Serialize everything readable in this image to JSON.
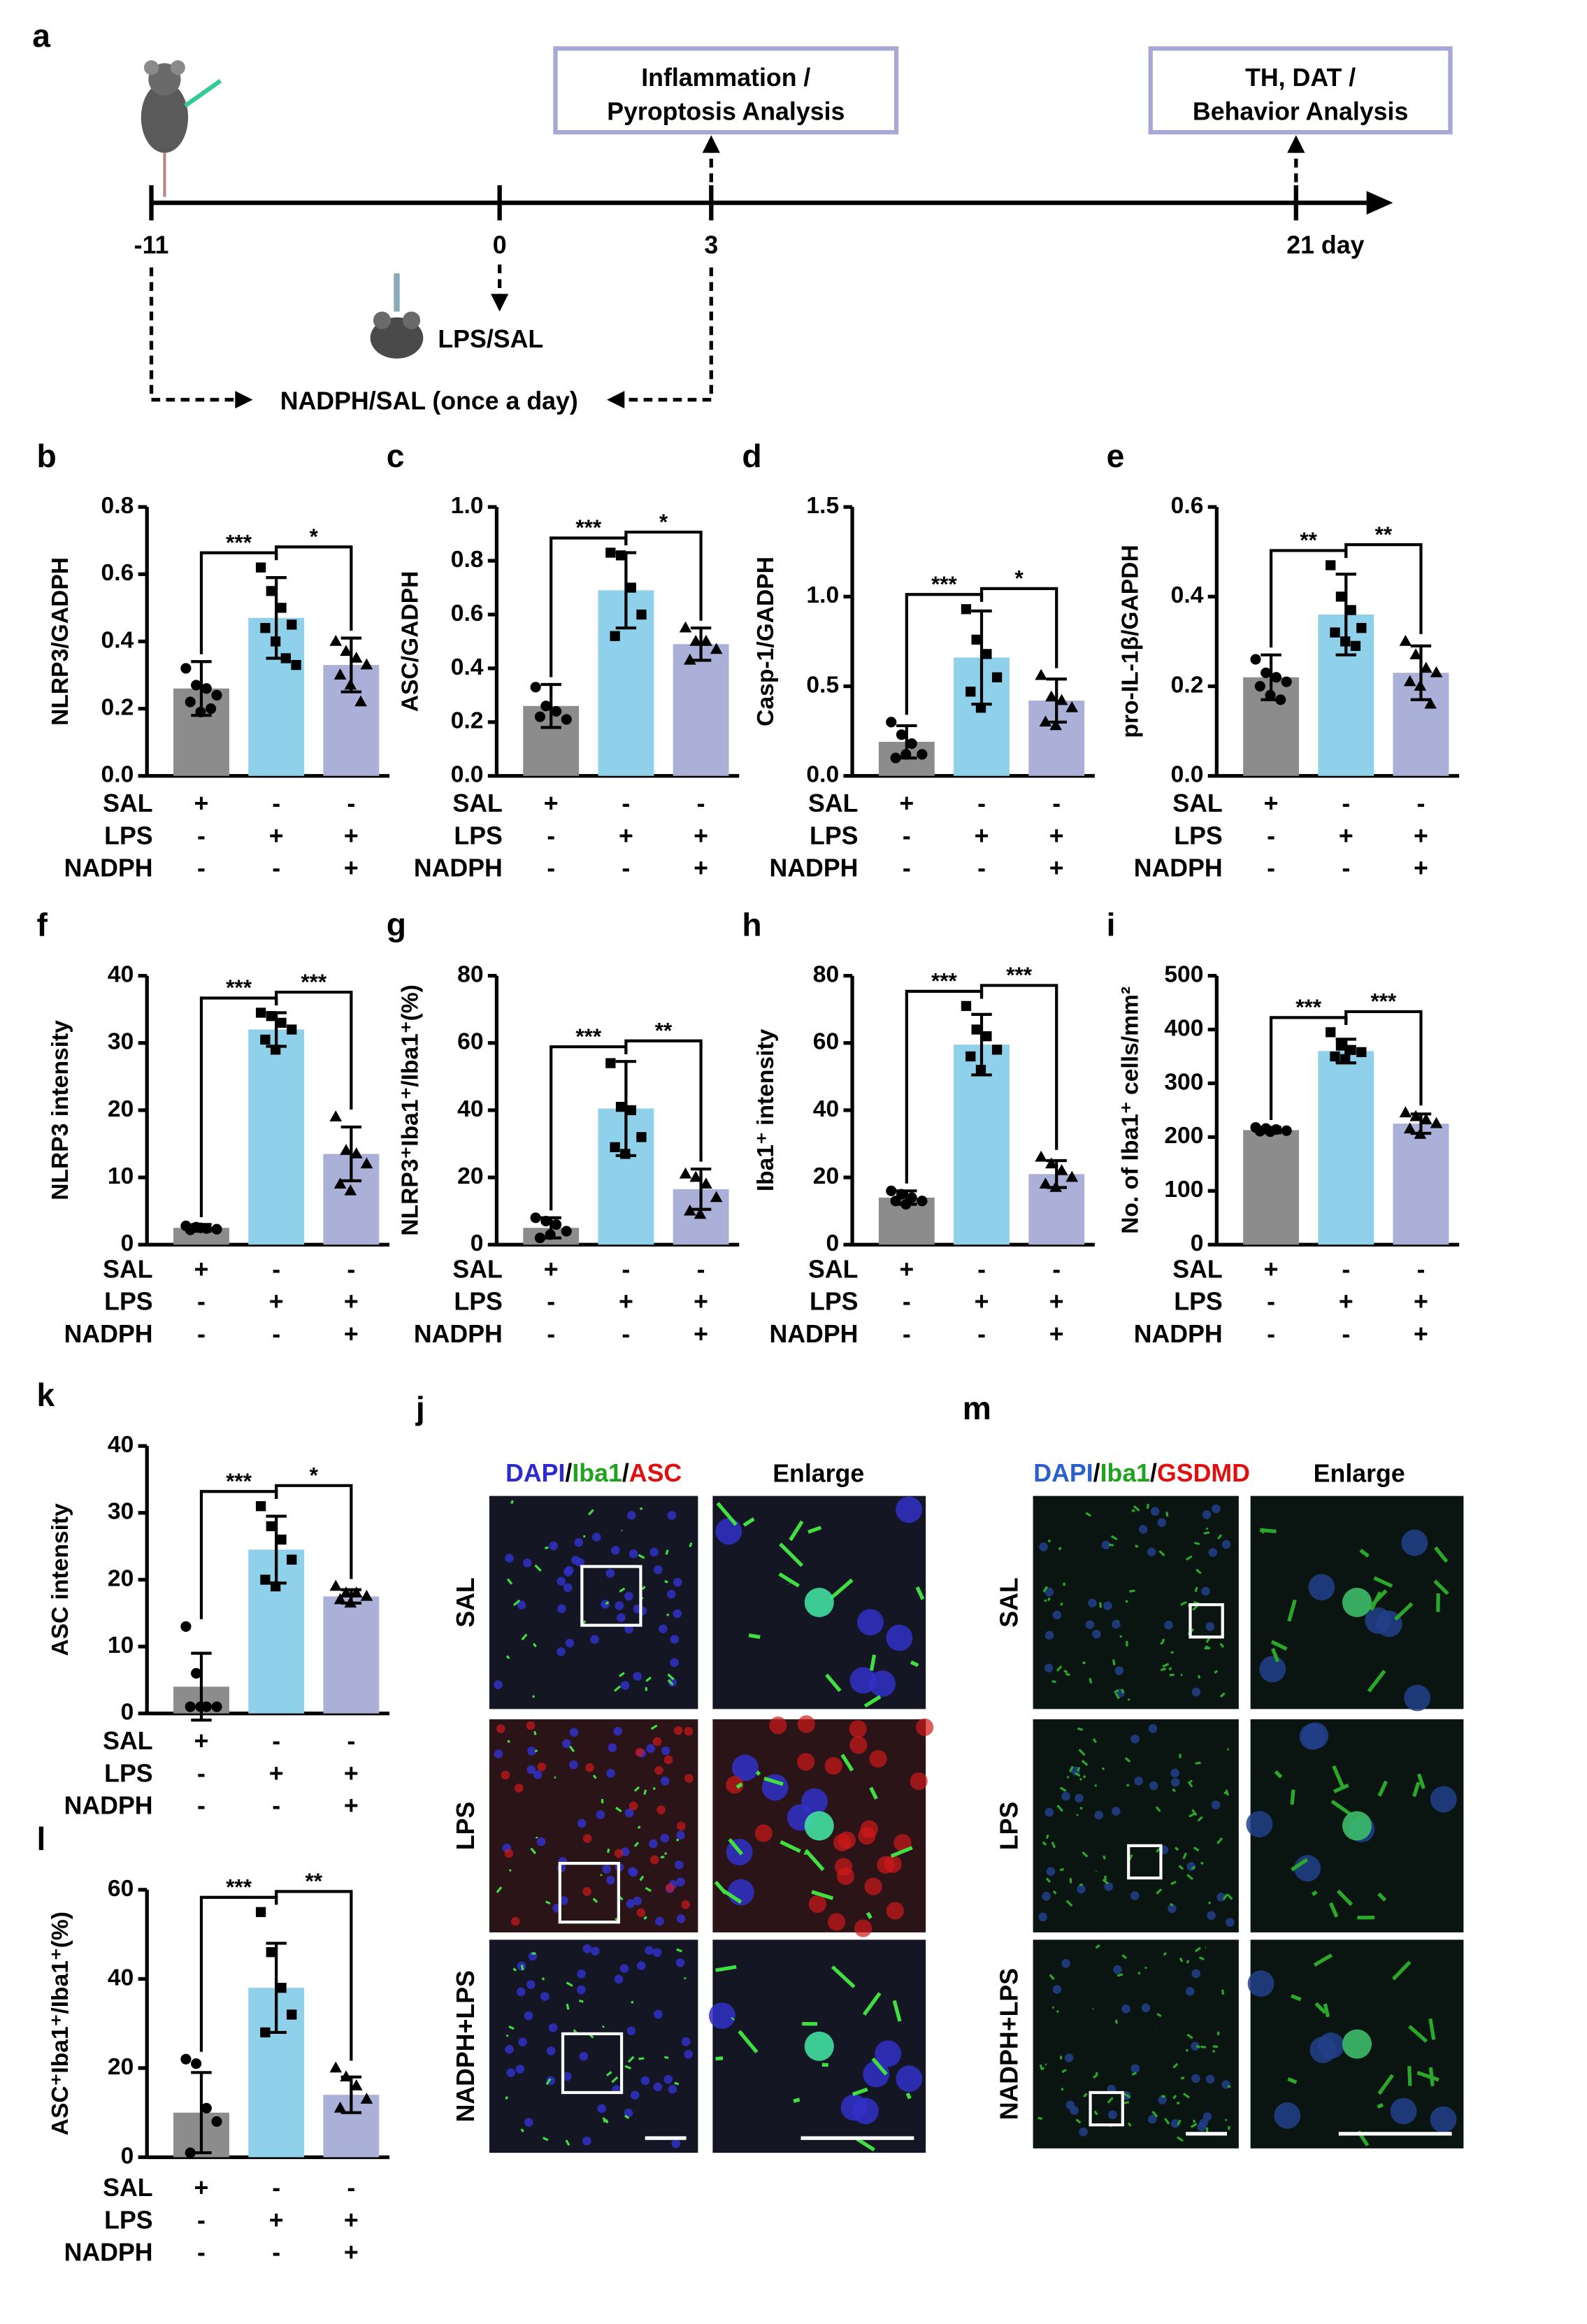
{
  "timeline": {
    "label": "a",
    "ticks": [
      "-11",
      "0",
      "3",
      "21 day"
    ],
    "boxes": [
      [
        "Inflammation /",
        "Pyroptosis Analysis"
      ],
      [
        "TH, DAT /",
        "Behavior Analysis"
      ]
    ],
    "treatment": "LPS/SAL",
    "schedule": "NADPH/SAL (once a day)"
  },
  "chart_data": [
    {
      "type": "bar",
      "label": "b",
      "ylabel": "NLRP3/GADPH",
      "ylim": [
        0,
        0.8
      ],
      "yticks": [
        {
          "value": 0,
          "label": "0.0"
        },
        0.2,
        0.4,
        0.6,
        0.8
      ],
      "values": [
        0.26,
        0.47,
        0.33
      ],
      "errors": [
        0.08,
        0.12,
        0.08
      ],
      "colors": [
        "#8c8c8c",
        "#8fd0ea",
        "#aab0d8"
      ],
      "points": [
        [
          0.32,
          0.27,
          0.26,
          0.24,
          0.22,
          0.19,
          0.2
        ],
        [
          0.62,
          0.55,
          0.5,
          0.45,
          0.44,
          0.4,
          0.35,
          0.33
        ],
        [
          0.4,
          0.37,
          0.35,
          0.33,
          0.3,
          0.27,
          0.22
        ]
      ],
      "significance": [
        "***",
        "*"
      ],
      "conditions": [
        {
          "name": "SAL",
          "signs": [
            "+",
            "-",
            "-"
          ]
        },
        {
          "name": "LPS",
          "signs": [
            "-",
            "+",
            "+"
          ]
        },
        {
          "name": "NADPH",
          "signs": [
            "-",
            "-",
            "+"
          ]
        }
      ]
    },
    {
      "type": "bar",
      "label": "c",
      "ylabel": "ASC/GADPH",
      "ylim": [
        0,
        1.0
      ],
      "yticks": [
        {
          "value": 0,
          "label": "0.0"
        },
        0.2,
        0.4,
        0.6,
        0.8,
        {
          "value": 1,
          "label": "1.0"
        }
      ],
      "values": [
        0.26,
        0.69,
        0.49
      ],
      "errors": [
        0.08,
        0.14,
        0.06
      ],
      "colors": [
        "#8c8c8c",
        "#8fd0ea",
        "#aab0d8"
      ],
      "points": [
        [
          0.33,
          0.26,
          0.24,
          0.21,
          0.22
        ],
        [
          0.83,
          0.82,
          0.7,
          0.6,
          0.52
        ],
        [
          0.55,
          0.5,
          0.5,
          0.47,
          0.43
        ]
      ],
      "significance": [
        "***",
        "*"
      ],
      "conditions": [
        {
          "name": "SAL",
          "signs": [
            "+",
            "-",
            "-"
          ]
        },
        {
          "name": "LPS",
          "signs": [
            "-",
            "+",
            "+"
          ]
        },
        {
          "name": "NADPH",
          "signs": [
            "-",
            "-",
            "+"
          ]
        }
      ]
    },
    {
      "type": "bar",
      "label": "d",
      "ylabel": "Casp-1/GADPH",
      "ylim": [
        0,
        1.5
      ],
      "yticks": [
        {
          "value": 0,
          "label": "0.0"
        },
        0.5,
        {
          "value": 1,
          "label": "1.0"
        },
        1.5
      ],
      "values": [
        0.19,
        0.66,
        0.42
      ],
      "errors": [
        0.09,
        0.26,
        0.12
      ],
      "colors": [
        "#8c8c8c",
        "#8fd0ea",
        "#aab0d8"
      ],
      "points": [
        [
          0.3,
          0.23,
          0.18,
          0.12,
          0.1,
          0.12
        ],
        [
          0.93,
          0.76,
          0.68,
          0.55,
          0.47,
          0.38
        ],
        [
          0.56,
          0.44,
          0.42,
          0.38,
          0.3,
          0.28
        ]
      ],
      "significance": [
        "***",
        "*"
      ],
      "conditions": [
        {
          "name": "SAL",
          "signs": [
            "+",
            "-",
            "-"
          ]
        },
        {
          "name": "LPS",
          "signs": [
            "-",
            "+",
            "+"
          ]
        },
        {
          "name": "NADPH",
          "signs": [
            "-",
            "-",
            "+"
          ]
        }
      ]
    },
    {
      "type": "bar",
      "label": "e",
      "ylabel": "pro-IL-1β/GAPDH",
      "ylim": [
        0,
        0.6
      ],
      "yticks": [
        {
          "value": 0,
          "label": "0.0"
        },
        0.2,
        0.4,
        0.6
      ],
      "values": [
        0.22,
        0.36,
        0.23
      ],
      "errors": [
        0.05,
        0.09,
        0.06
      ],
      "colors": [
        "#8c8c8c",
        "#8fd0ea",
        "#aab0d8"
      ],
      "points": [
        [
          0.26,
          0.23,
          0.22,
          0.21,
          0.2,
          0.18,
          0.17
        ],
        [
          0.47,
          0.4,
          0.37,
          0.33,
          0.32,
          0.3,
          0.29
        ],
        [
          0.3,
          0.27,
          0.24,
          0.23,
          0.21,
          0.2,
          0.16
        ]
      ],
      "significance": [
        "**",
        "**"
      ],
      "conditions": [
        {
          "name": "SAL",
          "signs": [
            "+",
            "-",
            "-"
          ]
        },
        {
          "name": "LPS",
          "signs": [
            "-",
            "+",
            "+"
          ]
        },
        {
          "name": "NADPH",
          "signs": [
            "-",
            "-",
            "+"
          ]
        }
      ]
    },
    {
      "type": "bar",
      "label": "f",
      "ylabel": "NLRP3 intensity",
      "ylim": [
        0,
        40
      ],
      "yticks": [
        0,
        10,
        20,
        30,
        40
      ],
      "values": [
        2.5,
        32,
        13.5
      ],
      "errors": [
        0.5,
        2.5,
        4
      ],
      "colors": [
        "#8c8c8c",
        "#8fd0ea",
        "#aab0d8"
      ],
      "points": [
        [
          2.8,
          2.6,
          2.4,
          2.3,
          2.2,
          2.5
        ],
        [
          34.5,
          34,
          33,
          32,
          30.5,
          29
        ],
        [
          19,
          14,
          13.5,
          12,
          9,
          8
        ]
      ],
      "significance": [
        "***",
        "***"
      ],
      "conditions": [
        {
          "name": "SAL",
          "signs": [
            "+",
            "-",
            "-"
          ]
        },
        {
          "name": "LPS",
          "signs": [
            "-",
            "+",
            "+"
          ]
        },
        {
          "name": "NADPH",
          "signs": [
            "-",
            "-",
            "+"
          ]
        }
      ]
    },
    {
      "type": "bar",
      "label": "g",
      "ylabel": "NLRP3⁺Iba1⁺/Iba1⁺(%)",
      "ylim": [
        0,
        80
      ],
      "yticks": [
        0,
        20,
        40,
        60,
        80
      ],
      "values": [
        5,
        40.5,
        16.5
      ],
      "errors": [
        3,
        14,
        6
      ],
      "colors": [
        "#8c8c8c",
        "#8fd0ea",
        "#aab0d8"
      ],
      "points": [
        [
          8,
          7,
          6,
          4,
          2,
          3
        ],
        [
          54,
          41,
          40,
          32,
          29,
          27
        ],
        [
          21,
          20,
          18,
          14,
          10,
          9
        ]
      ],
      "significance": [
        "***",
        "**"
      ],
      "conditions": [
        {
          "name": "SAL",
          "signs": [
            "+",
            "-",
            "-"
          ]
        },
        {
          "name": "LPS",
          "signs": [
            "-",
            "+",
            "+"
          ]
        },
        {
          "name": "NADPH",
          "signs": [
            "-",
            "-",
            "+"
          ]
        }
      ]
    },
    {
      "type": "bar",
      "label": "h",
      "ylabel": "Iba1⁺ intensity",
      "ylim": [
        0,
        80
      ],
      "yticks": [
        0,
        20,
        40,
        60,
        80
      ],
      "values": [
        14,
        59.5,
        21
      ],
      "errors": [
        2,
        9,
        4
      ],
      "colors": [
        "#8c8c8c",
        "#8fd0ea",
        "#aab0d8"
      ],
      "points": [
        [
          16,
          15,
          14,
          13,
          13,
          12
        ],
        [
          71,
          64,
          62,
          58,
          56,
          52
        ],
        [
          26,
          24,
          22,
          20,
          18,
          17
        ]
      ],
      "significance": [
        "***",
        "***"
      ],
      "conditions": [
        {
          "name": "SAL",
          "signs": [
            "+",
            "-",
            "-"
          ]
        },
        {
          "name": "LPS",
          "signs": [
            "-",
            "+",
            "+"
          ]
        },
        {
          "name": "NADPH",
          "signs": [
            "-",
            "-",
            "+"
          ]
        }
      ]
    },
    {
      "type": "bar",
      "label": "i",
      "ylabel": "No. of Iba1⁺ cells/mm²",
      "ylim": [
        0,
        500
      ],
      "yticks": [
        0,
        100,
        200,
        300,
        400,
        500
      ],
      "values": [
        213,
        360,
        225
      ],
      "errors": [
        5,
        22,
        18
      ],
      "colors": [
        "#8c8c8c",
        "#8fd0ea",
        "#aab0d8"
      ],
      "points": [
        [
          218,
          216,
          214,
          212,
          211,
          210
        ],
        [
          395,
          370,
          362,
          358,
          350,
          345
        ],
        [
          245,
          238,
          232,
          225,
          215,
          205
        ]
      ],
      "significance": [
        "***",
        "***"
      ],
      "conditions": [
        {
          "name": "SAL",
          "signs": [
            "+",
            "-",
            "-"
          ]
        },
        {
          "name": "LPS",
          "signs": [
            "-",
            "+",
            "+"
          ]
        },
        {
          "name": "NADPH",
          "signs": [
            "-",
            "-",
            "+"
          ]
        }
      ]
    },
    {
      "type": "bar",
      "label": "k",
      "ylabel": "ASC intensity",
      "ylim": [
        0,
        40
      ],
      "yticks": [
        0,
        10,
        20,
        30,
        40
      ],
      "values": [
        4,
        24.5,
        17.5
      ],
      "errors": [
        5,
        5,
        1
      ],
      "colors": [
        "#8c8c8c",
        "#8fd0ea",
        "#aab0d8"
      ],
      "points": [
        [
          13,
          6,
          1,
          1,
          1,
          1
        ],
        [
          31,
          28,
          26,
          23,
          20,
          19
        ],
        [
          19,
          18,
          18,
          17.5,
          17,
          16.5
        ]
      ],
      "significance": [
        "***",
        "*"
      ],
      "conditions": [
        {
          "name": "SAL",
          "signs": [
            "+",
            "-",
            "-"
          ]
        },
        {
          "name": "LPS",
          "signs": [
            "-",
            "+",
            "+"
          ]
        },
        {
          "name": "NADPH",
          "signs": [
            "-",
            "-",
            "+"
          ]
        }
      ]
    },
    {
      "type": "bar",
      "label": "l",
      "ylabel": "ASC⁺Iba1⁺/Iba1⁺(%)",
      "ylim": [
        0,
        60
      ],
      "yticks": [
        0,
        20,
        40,
        60
      ],
      "values": [
        10,
        38,
        14
      ],
      "errors": [
        9,
        10,
        4
      ],
      "colors": [
        "#8c8c8c",
        "#8fd0ea",
        "#aab0d8"
      ],
      "points": [
        [
          22,
          21,
          11,
          8,
          1
        ],
        [
          55,
          46,
          38,
          32,
          28
        ],
        [
          20,
          18,
          16,
          13,
          11
        ]
      ],
      "significance": [
        "***",
        "**"
      ],
      "conditions": [
        {
          "name": "SAL",
          "signs": [
            "+",
            "-",
            "-"
          ]
        },
        {
          "name": "LPS",
          "signs": [
            "-",
            "+",
            "+"
          ]
        },
        {
          "name": "NADPH",
          "signs": [
            "-",
            "-",
            "+"
          ]
        }
      ]
    }
  ],
  "micrographs": [
    {
      "label": "j",
      "header": [
        {
          "text": "DAPI",
          "color": "#2b2bd0"
        },
        {
          "text": "/",
          "color": "#000000"
        },
        {
          "text": "Iba1",
          "color": "#1fa31f"
        },
        {
          "text": "/",
          "color": "#000000"
        },
        {
          "text": "ASC",
          "color": "#e01010"
        }
      ],
      "enlarge": "Enlarge",
      "rows": [
        "SAL",
        "LPS",
        "NADPH+LPS"
      ]
    },
    {
      "label": "m",
      "header": [
        {
          "text": "DAPI",
          "color": "#2b5fd0"
        },
        {
          "text": "/",
          "color": "#000000"
        },
        {
          "text": "Iba1",
          "color": "#1fa31f"
        },
        {
          "text": "/",
          "color": "#000000"
        },
        {
          "text": "GSDMD",
          "color": "#e01010"
        }
      ],
      "enlarge": "Enlarge",
      "rows": [
        "SAL",
        "LPS",
        "NADPH+LPS"
      ]
    }
  ]
}
